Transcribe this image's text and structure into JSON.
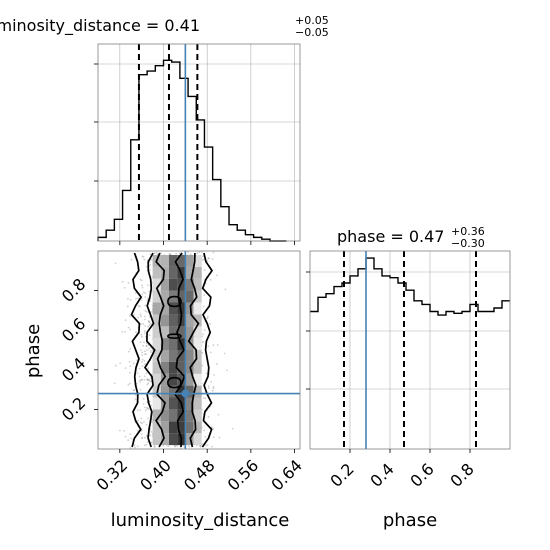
{
  "chart_data": [
    {
      "type": "histogram",
      "panel": "luminosity_distance 1D posterior",
      "title": {
        "param": "luminosity_distance",
        "median": "0.41",
        "plus": "+0.05",
        "minus": "−0.05"
      },
      "bin_edges": [
        0.28,
        0.295,
        0.31,
        0.325,
        0.34,
        0.355,
        0.37,
        0.385,
        0.4,
        0.415,
        0.43,
        0.445,
        0.46,
        0.475,
        0.49,
        0.505,
        0.52,
        0.535,
        0.55,
        0.565,
        0.58,
        0.595,
        0.61,
        0.625
      ],
      "counts": [
        0.02,
        0.06,
        0.12,
        0.28,
        0.56,
        0.92,
        0.94,
        0.97,
        1.0,
        0.99,
        0.9,
        0.8,
        0.67,
        0.52,
        0.34,
        0.19,
        0.09,
        0.06,
        0.035,
        0.02,
        0.01,
        0.0,
        0.0
      ],
      "quantiles": [
        0.355,
        0.41,
        0.462
      ],
      "truth": 0.44,
      "xlim": [
        0.28,
        0.65
      ],
      "ylim": [
        0,
        1.09
      ]
    },
    {
      "type": "scatter",
      "panel": "2D posterior luminosity_distance vs phase",
      "xlabel": "luminosity_distance",
      "ylabel": "phase",
      "x_ticks": [
        "0.32",
        "0.40",
        "0.48",
        "0.56",
        "0.64"
      ],
      "y_ticks": [
        "0.2",
        "0.4",
        "0.6",
        "0.8"
      ],
      "xlim": [
        0.28,
        0.65
      ],
      "ylim": [
        0.0,
        1.0
      ],
      "truth": [
        0.44,
        0.28
      ],
      "density_x_range": [
        0.37,
        0.475
      ],
      "contour_x_ranges": [
        [
          0.395,
          0.43
        ],
        [
          0.375,
          0.455
        ],
        [
          0.35,
          0.48
        ]
      ]
    },
    {
      "type": "histogram",
      "panel": "phase 1D posterior",
      "title": {
        "param": "phase",
        "median": "0.47",
        "plus": "+0.36",
        "minus": "−0.30"
      },
      "xlabel": "phase",
      "x_ticks": [
        "0.2",
        "0.4",
        "0.6",
        "0.8"
      ],
      "bin_edges": [
        0.0,
        0.04,
        0.08,
        0.12,
        0.16,
        0.2,
        0.24,
        0.28,
        0.32,
        0.36,
        0.4,
        0.44,
        0.48,
        0.52,
        0.56,
        0.6,
        0.64,
        0.68,
        0.72,
        0.76,
        0.8,
        0.84,
        0.88,
        0.92,
        0.96,
        1.0
      ],
      "counts": [
        0.66,
        0.74,
        0.76,
        0.8,
        0.82,
        0.86,
        0.9,
        0.96,
        0.9,
        0.86,
        0.85,
        0.82,
        0.78,
        0.72,
        0.7,
        0.66,
        0.64,
        0.66,
        0.65,
        0.66,
        0.7,
        0.66,
        0.66,
        0.68,
        0.72
      ],
      "quantiles": [
        0.17,
        0.47,
        0.83
      ],
      "truth": 0.28,
      "xlim": [
        0.0,
        1.0
      ],
      "ylim": [
        0,
        1.0
      ]
    }
  ],
  "colors": {
    "truth": "#4682b4",
    "hist": "#000000",
    "grid": "#b0b0b0",
    "axes": "#808080"
  }
}
